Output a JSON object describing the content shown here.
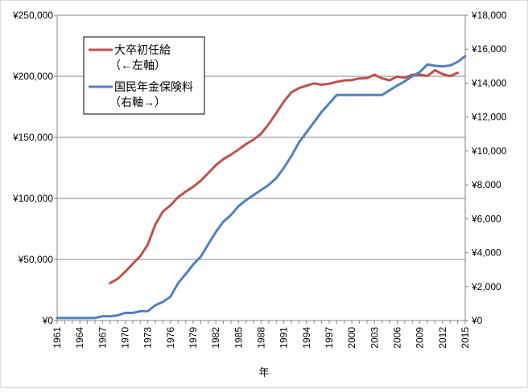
{
  "chart_data": {
    "type": "line",
    "xlabel": "年",
    "grid": true,
    "legend_position": "top-left",
    "x_ticks": [
      1961,
      1964,
      1967,
      1970,
      1973,
      1976,
      1979,
      1982,
      1985,
      1988,
      1991,
      1994,
      1997,
      2000,
      2003,
      2006,
      2009,
      2012,
      2015
    ],
    "x_range": [
      1961,
      2015
    ],
    "y_left": {
      "range": [
        0,
        250000
      ],
      "ticks": [
        0,
        50000,
        100000,
        150000,
        200000,
        250000
      ],
      "tick_labels": [
        "¥0",
        "¥50,000",
        "¥100,000",
        "¥150,000",
        "¥200,000",
        "¥250,000"
      ]
    },
    "y_right": {
      "range": [
        0,
        18000
      ],
      "ticks": [
        0,
        2000,
        4000,
        6000,
        8000,
        10000,
        12000,
        14000,
        16000,
        18000
      ],
      "tick_labels": [
        "¥0",
        "¥2,000",
        "¥4,000",
        "¥6,000",
        "¥8,000",
        "¥10,000",
        "¥12,000",
        "¥14,000",
        "¥16,000",
        "¥18,000"
      ]
    },
    "series": [
      {
        "name": "大卒初任給",
        "axis_note": "（←左軸）",
        "axis": "left",
        "color": "#c0504d",
        "x": [
          1968,
          1969,
          1970,
          1971,
          1972,
          1973,
          1974,
          1975,
          1976,
          1977,
          1978,
          1979,
          1980,
          1981,
          1982,
          1983,
          1984,
          1985,
          1986,
          1987,
          1988,
          1989,
          1990,
          1991,
          1992,
          1993,
          1994,
          1995,
          1996,
          1997,
          1998,
          1999,
          2000,
          2001,
          2002,
          2003,
          2004,
          2005,
          2006,
          2007,
          2008,
          2009,
          2010,
          2011,
          2012,
          2013,
          2014
        ],
        "y": [
          30600,
          34100,
          39900,
          46400,
          52700,
          62300,
          78700,
          89300,
          94300,
          101000,
          105500,
          109500,
          114500,
          120800,
          127200,
          132200,
          135800,
          140100,
          144500,
          148200,
          153100,
          160900,
          169900,
          179400,
          186900,
          190300,
          192400,
          194200,
          193200,
          193900,
          195500,
          196600,
          196900,
          198300,
          198500,
          201300,
          198300,
          196700,
          199800,
          198800,
          201300,
          201400,
          200300,
          205000,
          201800,
          200200,
          202900
        ]
      },
      {
        "name": "国民年金保険料",
        "axis_note": "（右軸→）",
        "axis": "right",
        "color": "#4f81bd",
        "x": [
          1961,
          1962,
          1963,
          1964,
          1965,
          1966,
          1967,
          1968,
          1969,
          1970,
          1971,
          1972,
          1973,
          1974,
          1975,
          1976,
          1977,
          1978,
          1979,
          1980,
          1981,
          1982,
          1983,
          1984,
          1985,
          1986,
          1987,
          1988,
          1989,
          1990,
          1991,
          1992,
          1993,
          1994,
          1995,
          1996,
          1997,
          1998,
          1999,
          2000,
          2001,
          2002,
          2003,
          2004,
          2005,
          2006,
          2007,
          2008,
          2009,
          2010,
          2011,
          2012,
          2013,
          2014,
          2015
        ],
        "y": [
          150,
          150,
          150,
          150,
          150,
          150,
          250,
          250,
          300,
          450,
          450,
          550,
          550,
          900,
          1100,
          1400,
          2200,
          2730,
          3300,
          3770,
          4500,
          5220,
          5830,
          6220,
          6740,
          7100,
          7400,
          7700,
          8000,
          8400,
          9000,
          9700,
          10500,
          11100,
          11700,
          12300,
          12800,
          13300,
          13300,
          13300,
          13300,
          13300,
          13300,
          13300,
          13580,
          13860,
          14100,
          14410,
          14660,
          15100,
          15020,
          14980,
          15040,
          15250,
          15590
        ]
      }
    ]
  }
}
